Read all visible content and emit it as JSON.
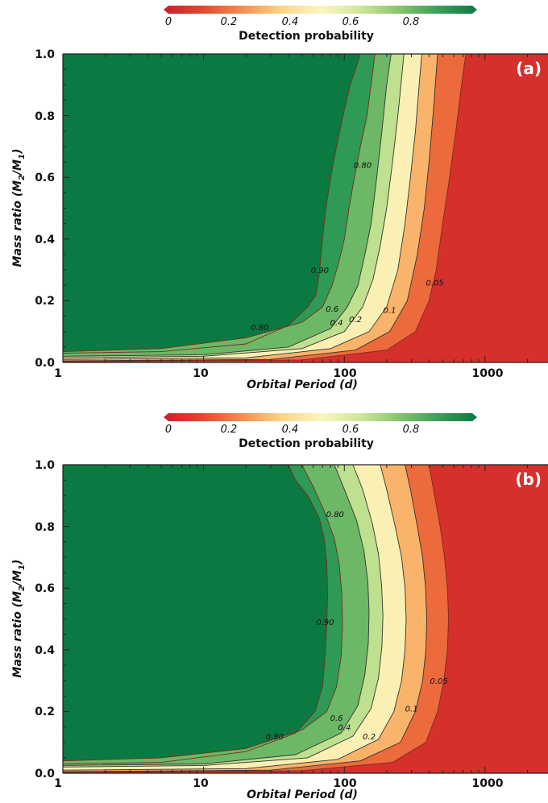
{
  "colorbar": {
    "label": "Detection probability",
    "ticks": [
      "0",
      "0.2",
      "0.4",
      "0.6",
      "0.8"
    ],
    "range": [
      0,
      1
    ],
    "colors": [
      "#cc1f2b",
      "#e4472f",
      "#f58d4e",
      "#fdd386",
      "#fbf6c0",
      "#cfe79a",
      "#87c56d",
      "#3b9f57",
      "#0b7a42"
    ]
  },
  "chart_data": [
    {
      "type": "heatmap",
      "panel": "(a)",
      "xlabel": "Orbital Period (d)",
      "ylabel": "Mass ratio (M2/M1)",
      "xscale": "log",
      "xlim": [
        1,
        2800
      ],
      "ylim": [
        0,
        1
      ],
      "x_ticks": [
        "1",
        "10",
        "100",
        "1000"
      ],
      "y_ticks": [
        "0.0",
        "0.2",
        "0.4",
        "0.6",
        "0.8",
        "1.0"
      ],
      "contours": [
        {
          "level": "0.90",
          "x": [
            1,
            5,
            20,
            40,
            55,
            63,
            66,
            68,
            70,
            74,
            80,
            88,
            98,
            110,
            120,
            130
          ],
          "y": [
            0.03,
            0.035,
            0.06,
            0.12,
            0.18,
            0.22,
            0.28,
            0.34,
            0.4,
            0.5,
            0.6,
            0.7,
            0.8,
            0.9,
            0.95,
            1.0
          ]
        },
        {
          "level": "0.80",
          "x": [
            1,
            5,
            20,
            50,
            70,
            82,
            92,
            100,
            108,
            118,
            130,
            145,
            155,
            165
          ],
          "y": [
            0.035,
            0.045,
            0.08,
            0.13,
            0.18,
            0.25,
            0.33,
            0.4,
            0.5,
            0.6,
            0.7,
            0.8,
            0.9,
            1.0
          ]
        },
        {
          "level": "0.6",
          "x": [
            1,
            10,
            40,
            80,
            105,
            125,
            140,
            155,
            170,
            185,
            200,
            215
          ],
          "y": [
            0.02,
            0.025,
            0.05,
            0.11,
            0.18,
            0.25,
            0.35,
            0.45,
            0.6,
            0.75,
            0.9,
            1.0
          ]
        },
        {
          "level": "0.4",
          "x": [
            1,
            10,
            50,
            100,
            135,
            160,
            180,
            200,
            220,
            240,
            255,
            265
          ],
          "y": [
            0.015,
            0.02,
            0.045,
            0.1,
            0.18,
            0.27,
            0.38,
            0.5,
            0.65,
            0.8,
            0.92,
            1.0
          ]
        },
        {
          "level": "0.2",
          "x": [
            1,
            20,
            80,
            150,
            200,
            240,
            270,
            295,
            320,
            340,
            355
          ],
          "y": [
            0.01,
            0.015,
            0.045,
            0.1,
            0.18,
            0.3,
            0.45,
            0.6,
            0.75,
            0.9,
            1.0
          ]
        },
        {
          "level": "0.1",
          "x": [
            1,
            30,
            120,
            210,
            280,
            330,
            370,
            400,
            430,
            460
          ],
          "y": [
            0.005,
            0.01,
            0.04,
            0.1,
            0.2,
            0.35,
            0.5,
            0.65,
            0.82,
            1.0
          ]
        },
        {
          "level": "0.05",
          "x": [
            1,
            50,
            200,
            320,
            400,
            450,
            500,
            560,
            620,
            680,
            730
          ],
          "y": [
            0.003,
            0.008,
            0.04,
            0.1,
            0.2,
            0.3,
            0.45,
            0.6,
            0.75,
            0.9,
            1.0
          ]
        }
      ],
      "contour_labels": [
        {
          "text": "0.90",
          "x": 67,
          "y": 0.29
        },
        {
          "text": "0.80",
          "x": 25,
          "y": 0.105
        },
        {
          "text": "0.80",
          "x": 135,
          "y": 0.63
        },
        {
          "text": "0.6",
          "x": 82,
          "y": 0.165
        },
        {
          "text": "0.4",
          "x": 88,
          "y": 0.12
        },
        {
          "text": "0.2",
          "x": 120,
          "y": 0.13
        },
        {
          "text": "0.1",
          "x": 210,
          "y": 0.16
        },
        {
          "text": "0.05",
          "x": 440,
          "y": 0.25
        }
      ]
    },
    {
      "type": "heatmap",
      "panel": "(b)",
      "xlabel": "Orbital Period (d)",
      "ylabel": "Mass ratio (M2/M1)",
      "xscale": "log",
      "xlim": [
        1,
        2800
      ],
      "ylim": [
        0,
        1
      ],
      "x_ticks": [
        "1",
        "10",
        "100",
        "1000"
      ],
      "y_ticks": [
        "0.0",
        "0.2",
        "0.4",
        "0.6",
        "0.8",
        "1.0"
      ],
      "contours": [
        {
          "level": "0.90",
          "x": [
            1,
            5,
            20,
            45,
            62,
            70,
            73,
            75,
            76,
            75,
            72,
            66,
            55,
            45,
            40
          ],
          "y": [
            0.03,
            0.035,
            0.07,
            0.13,
            0.2,
            0.28,
            0.38,
            0.48,
            0.58,
            0.68,
            0.76,
            0.83,
            0.9,
            0.95,
            1.0
          ]
        },
        {
          "level": "0.80",
          "x": [
            1,
            5,
            20,
            50,
            75,
            88,
            95,
            97,
            96,
            92,
            85,
            72,
            60,
            50
          ],
          "y": [
            0.04,
            0.05,
            0.08,
            0.14,
            0.2,
            0.28,
            0.38,
            0.48,
            0.58,
            0.68,
            0.76,
            0.85,
            0.93,
            1.0
          ]
        },
        {
          "level": "0.6",
          "x": [
            1,
            10,
            45,
            95,
            125,
            140,
            148,
            150,
            147,
            138,
            122,
            100,
            85
          ],
          "y": [
            0.025,
            0.03,
            0.06,
            0.13,
            0.22,
            0.32,
            0.42,
            0.52,
            0.62,
            0.72,
            0.82,
            0.92,
            1.0
          ]
        },
        {
          "level": "0.4",
          "x": [
            1,
            10,
            55,
            115,
            155,
            175,
            185,
            188,
            184,
            175,
            158,
            135,
            115
          ],
          "y": [
            0.02,
            0.025,
            0.05,
            0.12,
            0.21,
            0.31,
            0.41,
            0.51,
            0.61,
            0.71,
            0.81,
            0.92,
            1.0
          ]
        },
        {
          "level": "0.2",
          "x": [
            1,
            20,
            90,
            175,
            225,
            255,
            270,
            275,
            270,
            255,
            230,
            200,
            180
          ],
          "y": [
            0.01,
            0.015,
            0.045,
            0.11,
            0.2,
            0.3,
            0.4,
            0.5,
            0.6,
            0.7,
            0.8,
            0.92,
            1.0
          ]
        },
        {
          "level": "0.1",
          "x": [
            1,
            30,
            130,
            250,
            320,
            360,
            380,
            385,
            378,
            360,
            330,
            295,
            270
          ],
          "y": [
            0.005,
            0.01,
            0.04,
            0.1,
            0.2,
            0.3,
            0.4,
            0.5,
            0.6,
            0.7,
            0.8,
            0.92,
            1.0
          ]
        },
        {
          "level": "0.05",
          "x": [
            1,
            50,
            220,
            380,
            460,
            510,
            540,
            550,
            540,
            515,
            480,
            430,
            400
          ],
          "y": [
            0.003,
            0.008,
            0.035,
            0.1,
            0.2,
            0.3,
            0.4,
            0.5,
            0.6,
            0.7,
            0.8,
            0.92,
            1.0
          ]
        }
      ],
      "contour_labels": [
        {
          "text": "0.90",
          "x": 73,
          "y": 0.48
        },
        {
          "text": "0.80",
          "x": 86,
          "y": 0.83
        },
        {
          "text": "0.80",
          "x": 32,
          "y": 0.11
        },
        {
          "text": "0.6",
          "x": 88,
          "y": 0.17
        },
        {
          "text": "0.4",
          "x": 100,
          "y": 0.14
        },
        {
          "text": "0.2",
          "x": 150,
          "y": 0.11
        },
        {
          "text": "0.1",
          "x": 300,
          "y": 0.2
        },
        {
          "text": "0.05",
          "x": 470,
          "y": 0.29
        }
      ]
    }
  ]
}
